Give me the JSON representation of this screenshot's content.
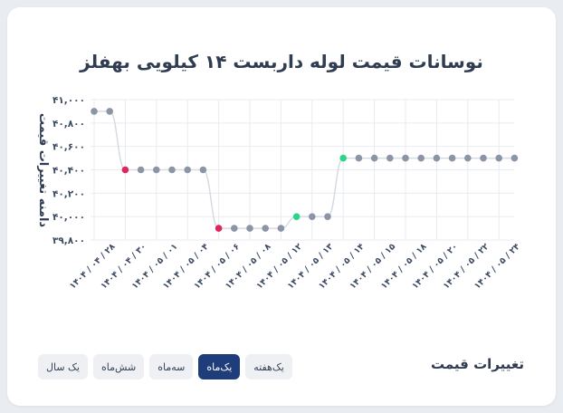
{
  "colors": {
    "point": "#8c95a6",
    "point_down": "#e0245e",
    "point_up": "#2ed48a",
    "line": "#d6dae1",
    "grid": "#e8ebf0",
    "axis_text": "#3c4a63",
    "active_button": "#1f3d7a"
  },
  "chart_data": {
    "type": "line",
    "title": "نوسانات قیمت لوله داربست ۱۴ کیلویی بهفلز",
    "ylabel": "دامنه تغییرات قیمت",
    "xlabel": "",
    "ylim": [
      39800,
      41000
    ],
    "yticks": [
      39800,
      40000,
      40200,
      40400,
      40600,
      40800,
      41000
    ],
    "ytick_labels": [
      "۳۹,۸۰۰",
      "۴۰,۰۰۰",
      "۴۰,۲۰۰",
      "۴۰,۴۰۰",
      "۴۰,۶۰۰",
      "۴۰,۸۰۰",
      "۴۱,۰۰۰"
    ],
    "categories": [
      "۱۴۰۴ / ۰۴ / ۲۸",
      "",
      "۱۴۰۴ / ۰۴ / ۳۰",
      "",
      "۱۴۰۴ / ۰۵ / ۰۱",
      "",
      "۱۴۰۴ / ۰۵ / ۰۴",
      "",
      "۱۴۰۴ / ۰۵ / ۰۶",
      "",
      "۱۴۰۴ / ۰۵ / ۰۸",
      "",
      "۱۴۰۴ / ۰۵ / ۱۲",
      "",
      "۱۴۰۴ / ۰۵ / ۱۳",
      "",
      "۱۴۰۴ / ۰۵ / ۱۴",
      "",
      "۱۴۰۴ / ۰۵ / ۱۵",
      "",
      "۱۴۰۴ / ۰۵ / ۱۸",
      "",
      "۱۴۰۴ / ۰۵ / ۲۰",
      "",
      "۱۴۰۴ / ۰۵ / ۲۲",
      "",
      "۱۴۰۴ / ۰۵ / ۲۴",
      ""
    ],
    "values": [
      40900,
      40900,
      40400,
      40400,
      40400,
      40400,
      40400,
      40400,
      39900,
      39900,
      39900,
      39900,
      39900,
      40000,
      40000,
      40000,
      40500,
      40500,
      40500,
      40500,
      40500,
      40500,
      40500,
      40500,
      40500,
      40500,
      40500,
      40500
    ],
    "point_status": [
      "flat",
      "flat",
      "down",
      "flat",
      "flat",
      "flat",
      "flat",
      "flat",
      "down",
      "flat",
      "flat",
      "flat",
      "flat",
      "up",
      "flat",
      "flat",
      "up",
      "flat",
      "flat",
      "flat",
      "flat",
      "flat",
      "flat",
      "flat",
      "flat",
      "flat",
      "flat",
      "flat"
    ],
    "grid": true,
    "legend": "none"
  },
  "section_label": "تغییرات قیمت",
  "range_buttons": [
    {
      "label": "یک سال",
      "active": false
    },
    {
      "label": "شش‌ماه",
      "active": false
    },
    {
      "label": "سه‌ماه",
      "active": false
    },
    {
      "label": "یک‌ماه",
      "active": true
    },
    {
      "label": "یک‌هفته",
      "active": false
    }
  ]
}
